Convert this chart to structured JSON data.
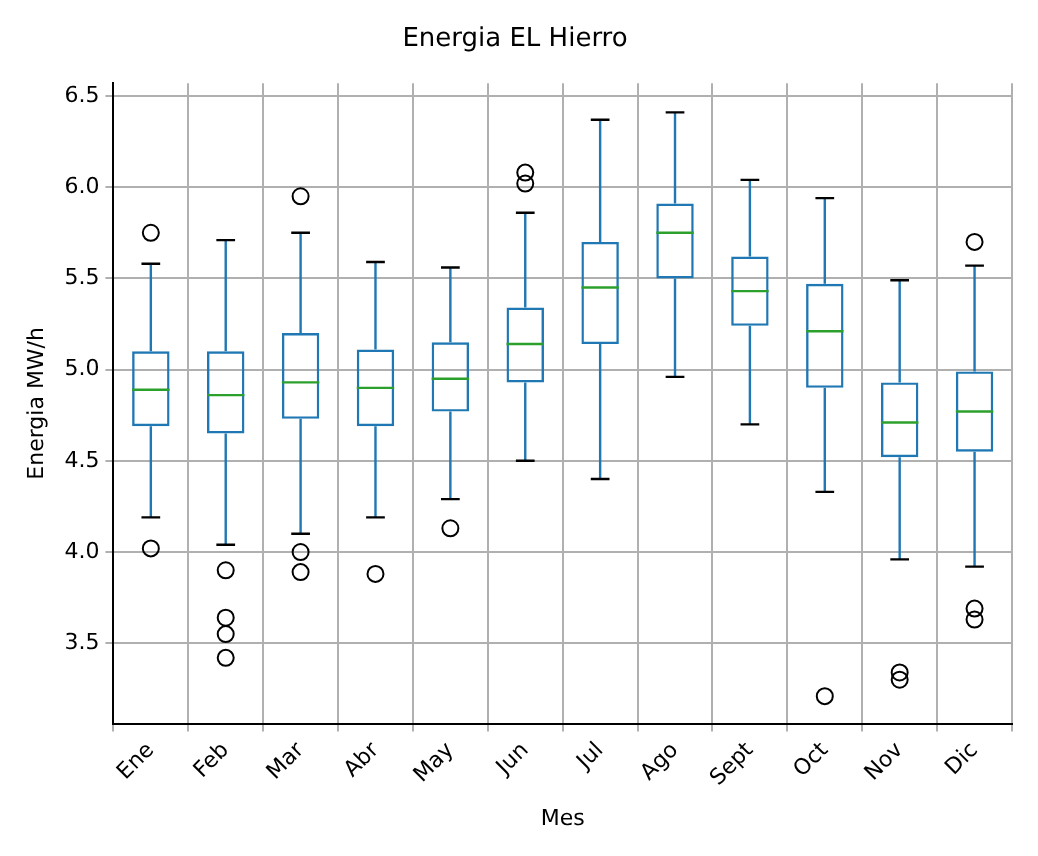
{
  "chart_data": {
    "type": "box",
    "title": "Energia EL Hierro",
    "xlabel": "Mes",
    "ylabel": "Energia MW/h",
    "categories": [
      "Ene",
      "Feb",
      "Mar",
      "Abr",
      "May",
      "Jun",
      "Jul",
      "Ago",
      "Sept",
      "Oct",
      "Nov",
      "Dic"
    ],
    "series": [
      {
        "color": "#1f77b4",
        "boxes": [
          {
            "low": 4.19,
            "q1": 4.69,
            "median": 4.89,
            "q3": 5.1,
            "high": 5.58,
            "outliers": [
              5.75,
              4.02
            ]
          },
          {
            "low": 4.04,
            "q1": 4.65,
            "median": 4.86,
            "q3": 5.1,
            "high": 5.71,
            "outliers": [
              3.9,
              3.64,
              3.55,
              3.42
            ]
          },
          {
            "low": 4.1,
            "q1": 4.73,
            "median": 4.93,
            "q3": 5.2,
            "high": 5.75,
            "outliers": [
              5.95,
              4.0,
              3.89
            ]
          },
          {
            "low": 4.19,
            "q1": 4.69,
            "median": 4.9,
            "q3": 5.11,
            "high": 5.59,
            "outliers": [
              3.88
            ]
          },
          {
            "low": 4.29,
            "q1": 4.77,
            "median": 4.95,
            "q3": 5.15,
            "high": 5.56,
            "outliers": [
              4.13
            ]
          },
          {
            "low": 4.5,
            "q1": 4.93,
            "median": 5.14,
            "q3": 5.34,
            "high": 5.86,
            "outliers": [
              6.02,
              6.08
            ]
          },
          {
            "low": 4.4,
            "q1": 5.14,
            "median": 5.45,
            "q3": 5.7,
            "high": 6.37
          },
          {
            "low": 4.96,
            "q1": 5.5,
            "median": 5.75,
            "q3": 5.91,
            "high": 6.41
          },
          {
            "low": 4.7,
            "q1": 5.24,
            "median": 5.43,
            "q3": 5.62,
            "high": 6.04
          },
          {
            "low": 4.33,
            "q1": 4.9,
            "median": 5.21,
            "q3": 5.47,
            "high": 5.94,
            "outliers": [
              3.21
            ]
          },
          {
            "low": 3.96,
            "q1": 4.52,
            "median": 4.71,
            "q3": 4.93,
            "high": 5.49,
            "outliers": [
              3.34,
              3.3
            ]
          },
          {
            "low": 3.92,
            "q1": 4.55,
            "median": 4.77,
            "q3": 4.99,
            "high": 5.57,
            "outliers": [
              5.7,
              3.69,
              3.63
            ]
          }
        ]
      }
    ],
    "ylim": [
      3.06,
      6.57
    ],
    "yticks": [
      3.5,
      {
        "value": 4,
        "label": "4.0"
      },
      4.5,
      {
        "value": 5,
        "label": "5.0"
      },
      5.5,
      {
        "value": 6,
        "label": "6.0"
      },
      6.5
    ],
    "grid": true,
    "legend": false
  }
}
